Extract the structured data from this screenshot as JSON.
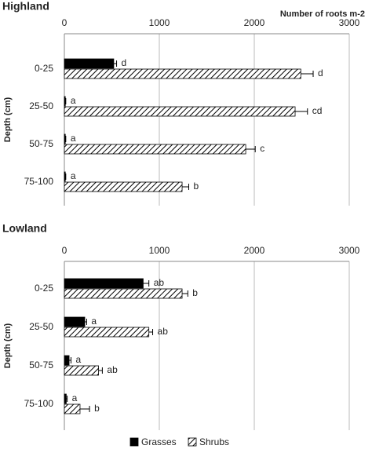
{
  "chart_data": [
    {
      "type": "bar",
      "orientation": "horizontal",
      "title": "Highland",
      "xlabel": "Number of roots m-2",
      "ylabel": "Depth (cm)",
      "categories": [
        "0-25",
        "25-50",
        "50-75",
        "75-100"
      ],
      "series": [
        {
          "name": "Grasses",
          "color": "#000000",
          "fill": "solid",
          "values": [
            520,
            10,
            10,
            10
          ],
          "errors": [
            30,
            5,
            5,
            5
          ],
          "letters": [
            "d",
            "a",
            "a",
            "a"
          ]
        },
        {
          "name": "Shrubs",
          "color": "#000000",
          "fill": "hatch",
          "values": [
            2490,
            2430,
            1910,
            1240
          ],
          "errors": [
            130,
            130,
            100,
            70
          ],
          "letters": [
            "d",
            "cd",
            "c",
            "b"
          ]
        }
      ],
      "xlim": [
        0,
        3000
      ],
      "xticks": [
        0,
        1000,
        2000,
        3000
      ],
      "grid": true
    },
    {
      "type": "bar",
      "orientation": "horizontal",
      "title": "Lowland",
      "ylabel": "Depth (cm)",
      "categories": [
        "0-25",
        "25-50",
        "50-75",
        "75-100"
      ],
      "series": [
        {
          "color": "#000000",
          "fill": "solid",
          "values": [
            830,
            215,
            50,
            20
          ],
          "errors": [
            60,
            20,
            20,
            10
          ],
          "letters": [
            "ab",
            "a",
            "a",
            "a"
          ]
        },
        {
          "color": "#000000",
          "fill": "hatch",
          "values": [
            1240,
            890,
            360,
            165
          ],
          "errors": [
            60,
            40,
            40,
            100
          ],
          "letters": [
            "b",
            "ab",
            "ab",
            "b"
          ]
        }
      ],
      "xlim": [
        0,
        3000
      ],
      "xticks": [
        0,
        1000,
        2000,
        3000
      ],
      "grid": true
    }
  ]
}
